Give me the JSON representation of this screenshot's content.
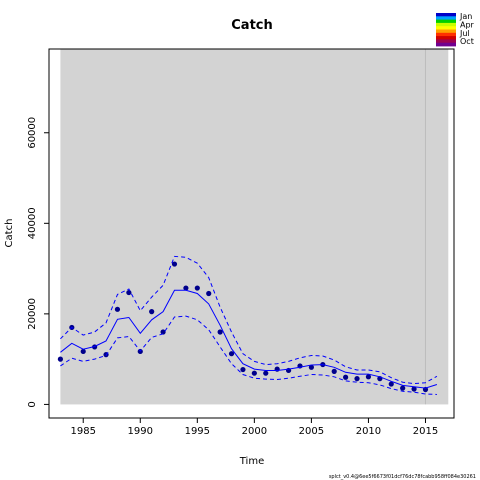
{
  "chart_data": {
    "type": "line",
    "title": "Catch",
    "xlabel": "Time",
    "ylabel": "Catch",
    "xlim": [
      1982,
      2017.5
    ],
    "ylim": [
      -3000,
      78500
    ],
    "xticks": [
      1985,
      1990,
      1995,
      2000,
      2005,
      2010,
      2015
    ],
    "yticks": [
      0,
      20000,
      40000,
      60000
    ],
    "shaded_region": [
      1983,
      2017
    ],
    "vline": 2015,
    "series": [
      {
        "kind": "points",
        "x": [
          1983,
          1984,
          1985,
          1986,
          1987,
          1988,
          1989,
          1990,
          1991,
          1992,
          1993,
          1994,
          1995,
          1996,
          1997,
          1998,
          1999,
          2000,
          2001,
          2002,
          2003,
          2004,
          2005,
          2006,
          2007,
          2008,
          2009,
          2010,
          2011,
          2012,
          2013,
          2014,
          2015
        ],
        "values": [
          10000,
          17000,
          11700,
          12700,
          11000,
          21000,
          24700,
          11700,
          20500,
          16000,
          31000,
          25700,
          25700,
          24500,
          16000,
          11200,
          7700,
          6900,
          6900,
          7800,
          7500,
          8500,
          8200,
          8800,
          7300,
          6000,
          5700,
          6100,
          5700,
          4500,
          3600,
          3400,
          3300
        ]
      },
      {
        "kind": "line",
        "x": [
          1983,
          1984,
          1985,
          1986,
          1987,
          1988,
          1989,
          1990,
          1991,
          1992,
          1993,
          1994,
          1995,
          1996,
          1997,
          1998,
          1999,
          2000,
          2001,
          2002,
          2003,
          2004,
          2005,
          2006,
          2007,
          2008,
          2009,
          2010,
          2011,
          2012,
          2013,
          2014,
          2015,
          2016
        ],
        "values": [
          11500,
          13500,
          12200,
          12800,
          14000,
          18800,
          19200,
          15700,
          18700,
          20500,
          25200,
          25200,
          24500,
          22200,
          17500,
          12300,
          9000,
          7800,
          7500,
          7500,
          7800,
          8200,
          8700,
          8800,
          8200,
          7100,
          6700,
          6700,
          6100,
          5100,
          4200,
          3900,
          3600,
          4400
        ]
      },
      {
        "kind": "upper",
        "x": [
          1983,
          1984,
          1985,
          1986,
          1987,
          1988,
          1989,
          1990,
          1991,
          1992,
          1993,
          1994,
          1995,
          1996,
          1997,
          1998,
          1999,
          2000,
          2001,
          2002,
          2003,
          2004,
          2005,
          2006,
          2007,
          2008,
          2009,
          2010,
          2011,
          2012,
          2013,
          2014,
          2015,
          2016
        ],
        "values": [
          14500,
          17000,
          15300,
          16000,
          18000,
          24300,
          25500,
          20700,
          23700,
          26300,
          32700,
          32500,
          31200,
          28000,
          21500,
          16000,
          11200,
          9500,
          8800,
          9000,
          9500,
          10300,
          10800,
          10700,
          9800,
          8300,
          7600,
          7600,
          7200,
          5900,
          4900,
          4600,
          4800,
          6200
        ]
      },
      {
        "kind": "lower",
        "x": [
          1983,
          1984,
          1985,
          1986,
          1987,
          1988,
          1989,
          1990,
          1991,
          1992,
          1993,
          1994,
          1995,
          1996,
          1997,
          1998,
          1999,
          2000,
          2001,
          2002,
          2003,
          2004,
          2005,
          2006,
          2007,
          2008,
          2009,
          2010,
          2011,
          2012,
          2013,
          2014,
          2015,
          2016
        ],
        "values": [
          8500,
          10200,
          9500,
          10000,
          10800,
          14700,
          15000,
          11800,
          14800,
          15600,
          19300,
          19500,
          18700,
          16500,
          12700,
          9000,
          6600,
          5800,
          5600,
          5500,
          5800,
          6200,
          6600,
          6500,
          6100,
          5200,
          4900,
          4800,
          4300,
          3500,
          2900,
          2700,
          2300,
          2200
        ]
      }
    ],
    "legend": [
      "Jan",
      "Apr",
      "Jul",
      "Oct"
    ],
    "legend_colors": [
      "#0000c8",
      "#00a0ff",
      "#00d000",
      "#c8ff00",
      "#ffff00",
      "#ffa000",
      "#ff3000",
      "#d00000",
      "#a00050",
      "#700090"
    ],
    "footnote": "splct_v0.4@6ee5f6673f01dcf76dc78fcabb958ff084e30261",
    "colors": {
      "line": "#0000ff",
      "points": "#00008b",
      "panel": "#d3d3d3",
      "vline": "#bdbdbd"
    }
  }
}
